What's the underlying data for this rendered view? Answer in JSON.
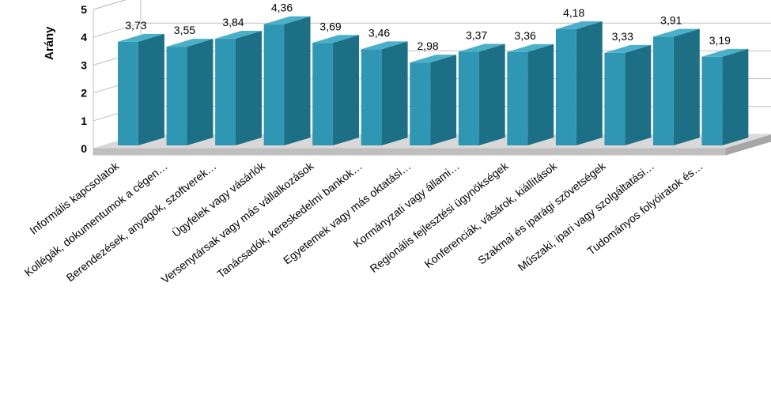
{
  "chart": {
    "type": "bar-3d",
    "ylabel": "Arány",
    "ylim": [
      0,
      5
    ],
    "ytick_step": 1,
    "yticks": [
      0,
      1,
      2,
      3,
      4,
      5
    ],
    "categories": [
      "Informális kapcsolatok",
      "Kollégák, dokumentumok a cégen…",
      "Berendezések, anyagok, szoftverek…",
      "Ügyfelek vagy vásárlók",
      "Versenytársak vagy más vállalkozások",
      "Tanácsadók, kereskedelmi bankok…",
      "Egyetemek vagy más oktatási…",
      "Kormányzati vagy állami…",
      "Regionális fejlesztési ügynökségek",
      "Konferenciák, vásárok, kiállítások",
      "Szakmai és iparági szövetségek",
      "Műszaki, ipari vagy szolgáltatási…",
      "Tudományos folyóiratok és…"
    ],
    "values": [
      3.73,
      3.55,
      3.84,
      4.36,
      3.69,
      3.46,
      2.98,
      3.37,
      3.36,
      4.18,
      3.33,
      3.91,
      3.19
    ],
    "value_labels": [
      "3,73",
      "3,55",
      "3,84",
      "4,36",
      "3,69",
      "3,46",
      "2,98",
      "3,37",
      "3,36",
      "4,18",
      "3,33",
      "3,91",
      "3,19"
    ],
    "colors": {
      "bar_front": "#2f96b4",
      "bar_top": "#4ab0c9",
      "bar_side": "#1d6f86",
      "floor_front": "#bfbfbf",
      "floor_top": "#d9d9d9",
      "back_wall": "#ffffff",
      "grid": "#bfbfbf",
      "text": "#000000"
    },
    "label_fontsize": 14,
    "title_fontsize": 15
  }
}
